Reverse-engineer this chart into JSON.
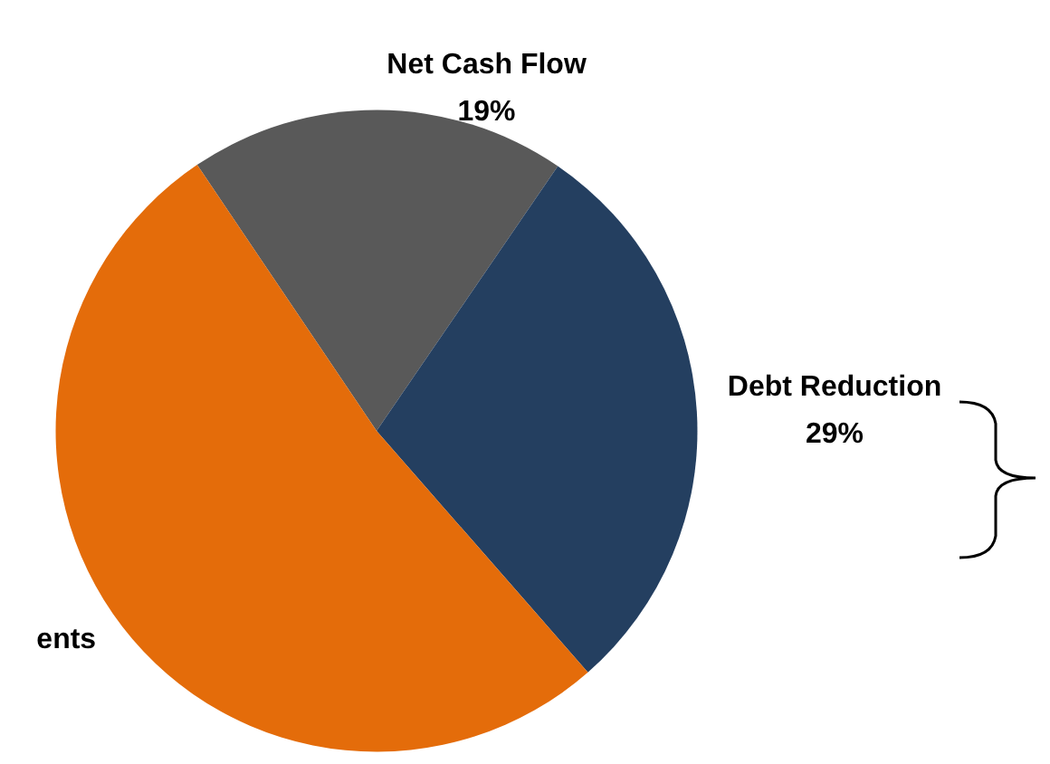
{
  "chart_data": {
    "type": "pie",
    "categories": [
      "Net Cash Flow",
      "Debt Reduction",
      "ents"
    ],
    "values": [
      19,
      29,
      52
    ],
    "colors": [
      "#595959",
      "#243f60",
      "#e46c0a"
    ],
    "value_labels": [
      "19%",
      "29%",
      null
    ]
  }
}
